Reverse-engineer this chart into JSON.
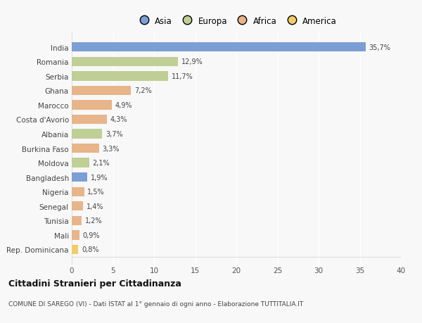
{
  "countries": [
    "India",
    "Romania",
    "Serbia",
    "Ghana",
    "Marocco",
    "Costa d'Avorio",
    "Albania",
    "Burkina Faso",
    "Moldova",
    "Bangladesh",
    "Nigeria",
    "Senegal",
    "Tunisia",
    "Mali",
    "Rep. Dominicana"
  ],
  "values": [
    35.7,
    12.9,
    11.7,
    7.2,
    4.9,
    4.3,
    3.7,
    3.3,
    2.1,
    1.9,
    1.5,
    1.4,
    1.2,
    0.9,
    0.8
  ],
  "labels": [
    "35,7%",
    "12,9%",
    "11,7%",
    "7,2%",
    "4,9%",
    "4,3%",
    "3,7%",
    "3,3%",
    "2,1%",
    "1,9%",
    "1,5%",
    "1,4%",
    "1,2%",
    "0,9%",
    "0,8%"
  ],
  "colors": [
    "#7b9fd4",
    "#c0cf96",
    "#c0cf96",
    "#e8b48a",
    "#e8b48a",
    "#e8b48a",
    "#c0cf96",
    "#e8b48a",
    "#c0cf96",
    "#7b9fd4",
    "#e8b48a",
    "#e8b48a",
    "#e8b48a",
    "#e8b48a",
    "#f0cc6a"
  ],
  "legend_labels": [
    "Asia",
    "Europa",
    "Africa",
    "America"
  ],
  "legend_colors": [
    "#7b9fd4",
    "#c0cf96",
    "#e8b48a",
    "#f0cc6a"
  ],
  "xlim": [
    0,
    40
  ],
  "xticks": [
    0,
    5,
    10,
    15,
    20,
    25,
    30,
    35,
    40
  ],
  "title": "Cittadini Stranieri per Cittadinanza",
  "subtitle": "COMUNE DI SAREGO (VI) - Dati ISTAT al 1° gennaio di ogni anno - Elaborazione TUTTITALIA.IT",
  "bg_color": "#f8f8f8",
  "bar_height": 0.65
}
